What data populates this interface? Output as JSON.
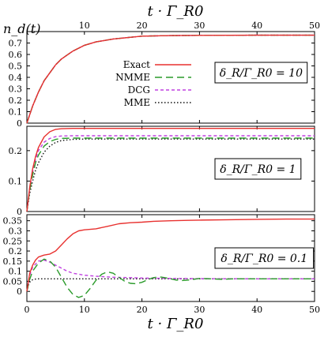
{
  "chart_data": {
    "type": "line",
    "title": "",
    "ylabel": "n_d(t)",
    "xlabel": "t · Γ_R0",
    "xlim": [
      0,
      50
    ],
    "x_ticks": [
      0,
      10,
      20,
      30,
      40,
      50
    ],
    "top_ticks": [
      10,
      20,
      30,
      40,
      50
    ],
    "grid": false,
    "legend_placement": "center (top panel)",
    "legend": [
      {
        "label": "Exact",
        "color": "#e8312f",
        "dash": "solid"
      },
      {
        "label": "NMME",
        "color": "#2a9a2a",
        "dash": "long-dash"
      },
      {
        "label": "DCG",
        "color": "#c040e0",
        "dash": "short-dash"
      },
      {
        "label": "MME",
        "color": "#111111",
        "dash": "dot"
      }
    ],
    "panels": [
      {
        "annotation": "δ_R/Γ_R0 = 10",
        "ylim": [
          0,
          0.8
        ],
        "y_ticks": [
          "0",
          "0.1",
          "0.2",
          "0.3",
          "0.4",
          "0.5",
          "0.6",
          "0.7"
        ],
        "series": [
          {
            "name": "Exact",
            "x": [
              0,
              1,
              2,
              3,
              4,
              5,
              6,
              8,
              10,
              12,
              15,
              20,
              25,
              30,
              40,
              50
            ],
            "y": [
              0,
              0.15,
              0.27,
              0.37,
              0.44,
              0.51,
              0.56,
              0.63,
              0.68,
              0.71,
              0.735,
              0.76,
              0.765,
              0.767,
              0.768,
              0.768
            ]
          },
          {
            "name": "NMME",
            "x": [
              0,
              1,
              2,
              3,
              4,
              5,
              6,
              8,
              10,
              12,
              15,
              20,
              25,
              30,
              40,
              50
            ],
            "y": [
              0,
              0.15,
              0.27,
              0.37,
              0.44,
              0.51,
              0.56,
              0.63,
              0.68,
              0.71,
              0.735,
              0.76,
              0.765,
              0.767,
              0.768,
              0.768
            ]
          },
          {
            "name": "DCG",
            "x": [
              0,
              1,
              2,
              3,
              4,
              5,
              6,
              8,
              10,
              12,
              15,
              20,
              25,
              30,
              40,
              50
            ],
            "y": [
              0,
              0.15,
              0.27,
              0.37,
              0.44,
              0.51,
              0.56,
              0.63,
              0.68,
              0.71,
              0.735,
              0.76,
              0.765,
              0.767,
              0.768,
              0.768
            ]
          },
          {
            "name": "MME",
            "x": [
              0,
              1,
              2,
              3,
              4,
              5,
              6,
              8,
              10,
              12,
              15,
              20,
              25,
              30,
              40,
              50
            ],
            "y": [
              0,
              0.15,
              0.27,
              0.37,
              0.44,
              0.51,
              0.56,
              0.63,
              0.68,
              0.71,
              0.735,
              0.76,
              0.765,
              0.767,
              0.768,
              0.768
            ]
          }
        ]
      },
      {
        "annotation": "δ_R/Γ_R0 = 1",
        "ylim": [
          0,
          0.28
        ],
        "y_ticks": [
          "0",
          "0.1",
          "0.2"
        ],
        "series": [
          {
            "name": "Exact",
            "x": [
              0,
              0.5,
              1,
              1.5,
              2,
              3,
              4,
              5,
              6,
              8,
              10,
              15,
              20,
              30,
              40,
              50
            ],
            "y": [
              0,
              0.08,
              0.14,
              0.18,
              0.21,
              0.245,
              0.262,
              0.27,
              0.272,
              0.273,
              0.273,
              0.273,
              0.273,
              0.273,
              0.273,
              0.273
            ]
          },
          {
            "name": "NMME",
            "x": [
              0,
              0.5,
              1,
              1.5,
              2,
              3,
              4,
              5,
              6,
              8,
              10,
              15,
              20,
              30,
              40,
              50
            ],
            "y": [
              0,
              0.07,
              0.12,
              0.16,
              0.185,
              0.215,
              0.23,
              0.237,
              0.24,
              0.241,
              0.241,
              0.241,
              0.241,
              0.241,
              0.241,
              0.241
            ]
          },
          {
            "name": "DCG",
            "x": [
              0,
              0.5,
              1,
              1.5,
              2,
              3,
              4,
              5,
              6,
              8,
              10,
              15,
              20,
              30,
              40,
              50
            ],
            "y": [
              0,
              0.075,
              0.13,
              0.17,
              0.2,
              0.228,
              0.24,
              0.246,
              0.248,
              0.249,
              0.249,
              0.249,
              0.249,
              0.249,
              0.249,
              0.249
            ]
          },
          {
            "name": "MME",
            "x": [
              0,
              0.5,
              1,
              1.5,
              2,
              3,
              4,
              5,
              6,
              8,
              10,
              15,
              20,
              30,
              40,
              50
            ],
            "y": [
              0,
              0.06,
              0.1,
              0.135,
              0.16,
              0.195,
              0.215,
              0.227,
              0.233,
              0.237,
              0.238,
              0.238,
              0.238,
              0.238,
              0.238,
              0.238
            ]
          }
        ]
      },
      {
        "annotation": "δ_R/Γ_R0 = 0.1",
        "ylim": [
          -0.05,
          0.38
        ],
        "y_ticks": [
          "0",
          "0.05",
          "0.1",
          "0.15",
          "0.2",
          "0.25",
          "0.3",
          "0.35"
        ],
        "series": [
          {
            "name": "Exact",
            "x": [
              0,
              0.5,
              1,
              1.5,
              2,
              3,
              4,
              5,
              6,
              7,
              8,
              9,
              10,
              12,
              14,
              16,
              18,
              20,
              22,
              25,
              28,
              30,
              35,
              40,
              45,
              50
            ],
            "y": [
              0,
              0.09,
              0.13,
              0.155,
              0.17,
              0.18,
              0.185,
              0.2,
              0.23,
              0.26,
              0.285,
              0.3,
              0.305,
              0.31,
              0.322,
              0.335,
              0.34,
              0.343,
              0.347,
              0.35,
              0.352,
              0.353,
              0.355,
              0.357,
              0.358,
              0.358
            ]
          },
          {
            "name": "NMME",
            "x": [
              0,
              0.5,
              1,
              2,
              3,
              4,
              5,
              6,
              7,
              8,
              9,
              10,
              11,
              12,
              13,
              14,
              15,
              16,
              17,
              18,
              19,
              20,
              21,
              22,
              23,
              24,
              25,
              26,
              27,
              28,
              29,
              30,
              32,
              34,
              36,
              38,
              40,
              45,
              50
            ],
            "y": [
              0,
              0.06,
              0.1,
              0.14,
              0.16,
              0.15,
              0.12,
              0.07,
              0.02,
              -0.015,
              -0.03,
              -0.02,
              0.015,
              0.055,
              0.085,
              0.097,
              0.09,
              0.07,
              0.05,
              0.04,
              0.038,
              0.045,
              0.058,
              0.068,
              0.072,
              0.068,
              0.062,
              0.056,
              0.054,
              0.056,
              0.06,
              0.064,
              0.062,
              0.06,
              0.062,
              0.062,
              0.062,
              0.062,
              0.062
            ]
          },
          {
            "name": "DCG",
            "x": [
              0,
              0.5,
              1,
              2,
              3,
              4,
              5,
              6,
              7,
              8,
              10,
              12,
              15,
              18,
              20,
              25,
              30,
              40,
              50
            ],
            "y": [
              0,
              0.08,
              0.12,
              0.15,
              0.155,
              0.145,
              0.13,
              0.115,
              0.1,
              0.09,
              0.08,
              0.075,
              0.07,
              0.068,
              0.066,
              0.064,
              0.063,
              0.062,
              0.062
            ]
          },
          {
            "name": "MME",
            "x": [
              0,
              0.3,
              0.6,
              1,
              1.5,
              2,
              3,
              5,
              10,
              20,
              30,
              40,
              50
            ],
            "y": [
              0,
              0.035,
              0.05,
              0.058,
              0.061,
              0.062,
              0.062,
              0.062,
              0.062,
              0.062,
              0.062,
              0.062,
              0.062
            ]
          }
        ]
      }
    ]
  }
}
